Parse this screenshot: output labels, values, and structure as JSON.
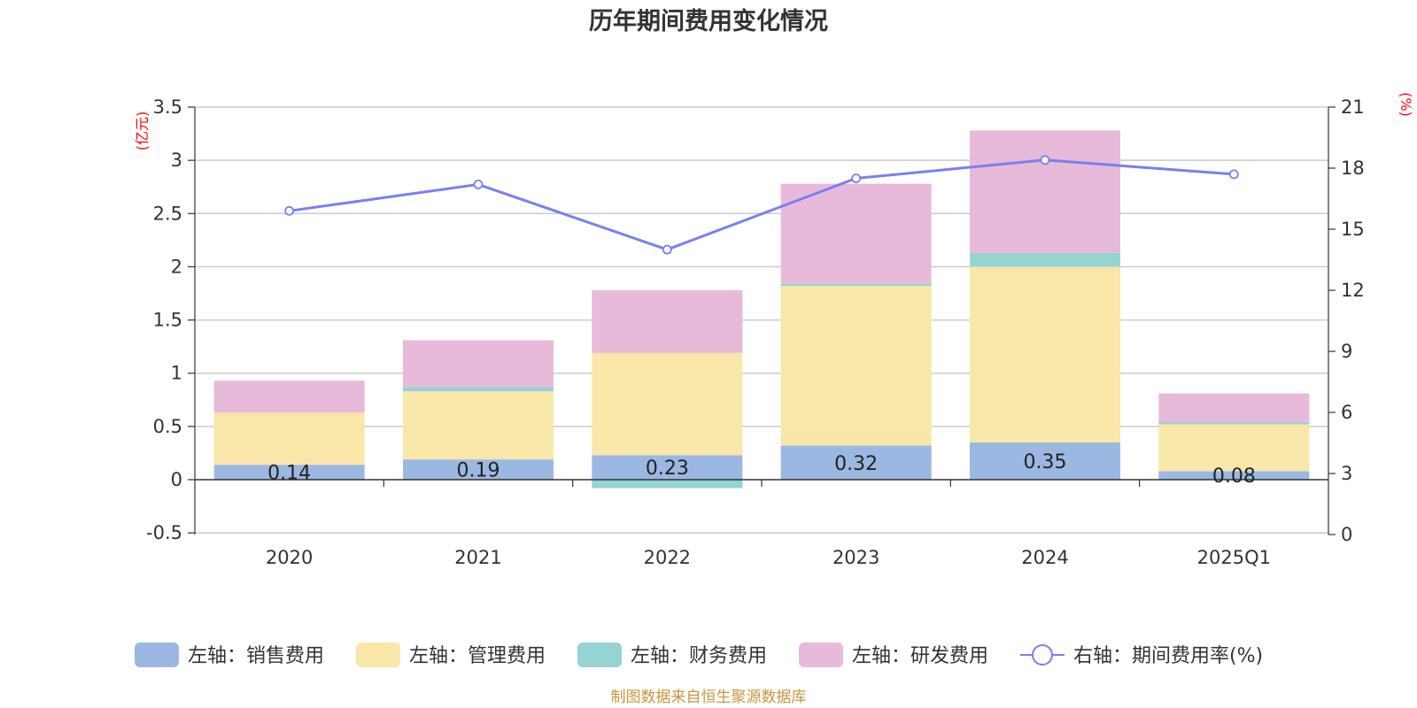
{
  "title": "历年期间费用变化情况",
  "source": "制图数据来自恒生聚源数据库",
  "colors": {
    "sales": "#9bb8e2",
    "admin": "#f8e7a8",
    "finance": "#96d3d3",
    "rd": "#e7bada",
    "rate": "#7b7ff0"
  },
  "chart_data": {
    "type": "bar",
    "stacked": true,
    "categories": [
      "2020",
      "2021",
      "2022",
      "2023",
      "2024",
      "2025Q1"
    ],
    "left_axis": {
      "unit": "(亿元)",
      "ylim": [
        -0.5,
        3.5
      ],
      "ticks": [
        "3.5",
        "3",
        "2.5",
        "2",
        "1.5",
        "1",
        "0.5",
        "0",
        "-0.5"
      ],
      "tick_values": [
        3.5,
        3,
        2.5,
        2,
        1.5,
        1,
        0.5,
        0,
        -0.5
      ]
    },
    "right_axis": {
      "unit": "(%)",
      "ylim": [
        0,
        21
      ],
      "ticks": [
        "21",
        "18",
        "15",
        "12",
        "9",
        "6",
        "3",
        "0"
      ],
      "tick_values": [
        21,
        18,
        15,
        12,
        9,
        6,
        3,
        0
      ]
    },
    "series": [
      {
        "name": "左轴：销售费用",
        "key": "sales",
        "axis": "left",
        "type": "bar",
        "values": [
          0.14,
          0.19,
          0.23,
          0.32,
          0.35,
          0.08
        ],
        "labels": [
          "0.14",
          "0.19",
          "0.23",
          "0.32",
          "0.35",
          "0.08"
        ]
      },
      {
        "name": "左轴：管理费用",
        "key": "admin",
        "axis": "left",
        "type": "bar",
        "values": [
          0.49,
          0.64,
          0.96,
          1.5,
          1.65,
          0.44
        ]
      },
      {
        "name": "左轴：财务费用",
        "key": "finance",
        "axis": "left",
        "type": "bar",
        "values": [
          0.0,
          0.04,
          -0.08,
          0.02,
          0.13,
          0.02
        ]
      },
      {
        "name": "左轴：研发费用",
        "key": "rd",
        "axis": "left",
        "type": "bar",
        "values": [
          0.3,
          0.44,
          0.59,
          0.94,
          1.15,
          0.27
        ]
      },
      {
        "name": "右轴：期间费用率(%)",
        "key": "rate",
        "axis": "right",
        "type": "line",
        "values": [
          15.9,
          17.2,
          14.0,
          17.5,
          18.4,
          17.7
        ]
      }
    ],
    "grid": true,
    "legend_position": "bottom"
  }
}
